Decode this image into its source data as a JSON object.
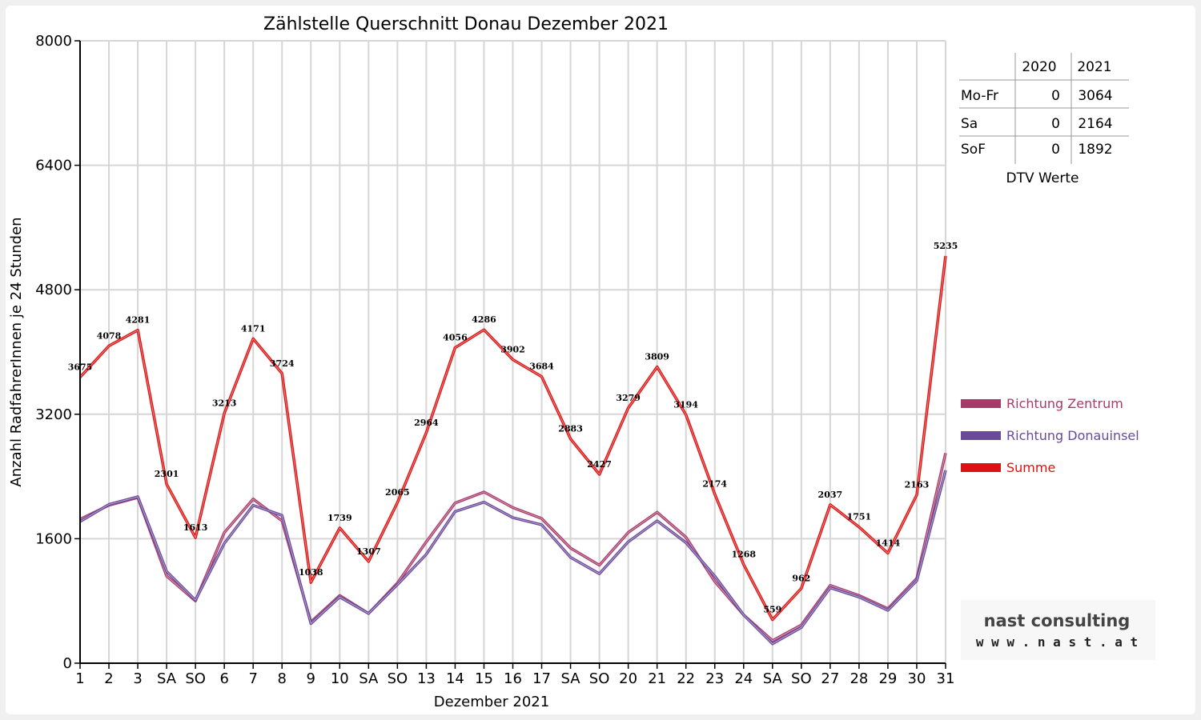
{
  "chart_data": {
    "type": "line",
    "title": "Zählstelle Querschnitt Donau Dezember 2021",
    "xlabel": "Dezember 2021",
    "ylabel": "Anzahl RadfahrerInnen je 24 Stunden",
    "ylim": [
      0,
      8000
    ],
    "yticks": [
      "0",
      "1600",
      "3200",
      "4800",
      "6400",
      "8000"
    ],
    "grid": true,
    "legend_position": "right",
    "categories": [
      "1",
      "2",
      "3",
      "SA",
      "SO",
      "6",
      "7",
      "8",
      "9",
      "10",
      "SA",
      "SO",
      "13",
      "14",
      "15",
      "16",
      "17",
      "SA",
      "SO",
      "20",
      "21",
      "22",
      "23",
      "24",
      "SA",
      "SO",
      "27",
      "28",
      "29",
      "30",
      "31"
    ],
    "highlight_categories": [
      "SO",
      "8"
    ],
    "highlight_color": "#ff0000",
    "series": [
      {
        "name": "Richtung Zentrum",
        "color": "#a83a6a",
        "values": [
          1850,
          2030,
          2130,
          1120,
          800,
          1680,
          2110,
          1830,
          530,
          870,
          640,
          1030,
          1560,
          2060,
          2200,
          2000,
          1860,
          1480,
          1260,
          1680,
          1940,
          1620,
          1050,
          620,
          290,
          490,
          1000,
          870,
          700,
          1090,
          2700
        ]
      },
      {
        "name": "Richtung Donauinsel",
        "color": "#6a4a9a",
        "values": [
          1820,
          2040,
          2140,
          1180,
          810,
          1540,
          2030,
          1900,
          510,
          850,
          640,
          1010,
          1400,
          1950,
          2070,
          1870,
          1780,
          1360,
          1150,
          1560,
          1830,
          1550,
          1120,
          620,
          250,
          460,
          970,
          850,
          680,
          1060,
          2480
        ]
      },
      {
        "name": "Summe",
        "color": "#dd1111",
        "values": [
          3675,
          4078,
          4281,
          2301,
          1613,
          3213,
          4171,
          3724,
          1038,
          1739,
          1307,
          2065,
          2964,
          4056,
          4286,
          3902,
          3684,
          2883,
          2427,
          3279,
          3809,
          3194,
          2174,
          1268,
          559,
          962,
          2037,
          1751,
          1414,
          2163,
          5235
        ]
      }
    ],
    "data_labels": [
      "3675",
      "4078",
      "4281",
      "2301",
      "1613",
      "3213",
      "4171",
      "3724",
      "1038",
      "1739",
      "1307",
      "2065",
      "2964",
      "4056",
      "4286",
      "3902",
      "3684",
      "2883",
      "2427",
      "3279",
      "3809",
      "3194",
      "2174",
      "1268",
      "559",
      "962",
      "2037",
      "1751",
      "1414",
      "2163",
      "5235"
    ]
  },
  "dtv_table": {
    "headers": [
      "",
      "2020",
      "2021"
    ],
    "rows": [
      {
        "label": "Mo-Fr",
        "v2020": "0",
        "v2021": "3064"
      },
      {
        "label": "Sa",
        "v2020": "0",
        "v2021": "2164"
      },
      {
        "label": "SoF",
        "v2020": "0",
        "v2021": "1892"
      }
    ],
    "caption": "DTV Werte"
  },
  "logo": {
    "line1": "nast consulting",
    "line2": "w w w . n a s t . a t",
    "accent": "#cc0000"
  }
}
